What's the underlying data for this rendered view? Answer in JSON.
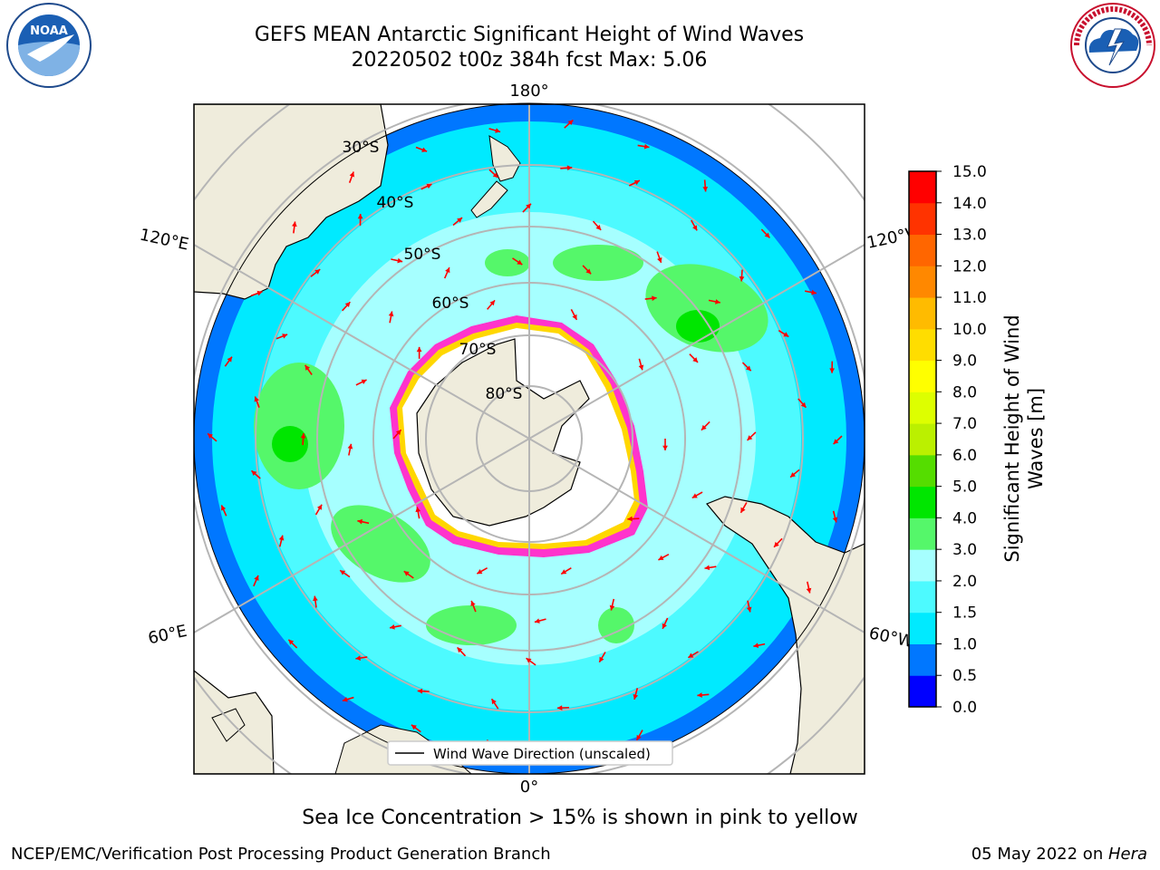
{
  "header": {
    "title": "GEFS MEAN Antarctic Significant Height of Wind Waves",
    "subtitle": "20220502 t00z 384h fcst   Max: 5.06"
  },
  "logos": {
    "left": {
      "icon": "noaa-logo",
      "text": "NOAA"
    },
    "right": {
      "icon": "national-weather-service-logo",
      "text": "NATIONAL WEATHER SERVICE"
    }
  },
  "map": {
    "projection": "south-polar-stereographic",
    "longitude_labels": {
      "top": "180°",
      "bottom": "0°",
      "left_upper": "120°E",
      "left_lower": "60°E",
      "right_upper": "120°W",
      "right_lower": "60°W"
    },
    "latitude_labels": [
      "30°S",
      "40°S",
      "50°S",
      "60°S",
      "70°S",
      "80°S"
    ],
    "legend": "Wind Wave Direction (unscaled)",
    "colors": {
      "land": "#efecdc",
      "ice": "#ffffff",
      "grid": "#b5b5b5",
      "arrow": "#ff0000",
      "sea_ice_pink": "#ff33cc",
      "sea_ice_yellow": "#ffd700"
    }
  },
  "colorbar": {
    "label": "Significant Height of Wind Waves [m]",
    "label_line1": "Significant Height of Wind",
    "label_line2": "Waves [m]",
    "ticks": [
      "0.0",
      "0.5",
      "1.0",
      "1.5",
      "2.0",
      "3.0",
      "4.0",
      "5.0",
      "6.0",
      "7.0",
      "8.0",
      "9.0",
      "10.0",
      "11.0",
      "12.0",
      "13.0",
      "14.0",
      "15.0"
    ],
    "colors": [
      "#0000ff",
      "#0077ff",
      "#00eaff",
      "#4dfaff",
      "#a6ffff",
      "#55f76a",
      "#00e600",
      "#55dd00",
      "#bbf000",
      "#ddff00",
      "#ffff00",
      "#ffdd00",
      "#ffbb00",
      "#ff8800",
      "#ff6600",
      "#ff3300",
      "#ff0000"
    ]
  },
  "captions": {
    "sea_ice": "Sea Ice Concentration > 15% is shown in pink to yellow",
    "footer_left": "NCEP/EMC/Verification Post Processing Product Generation Branch",
    "footer_right_prefix": "05 May 2022 on ",
    "footer_right_host": "Hera"
  }
}
